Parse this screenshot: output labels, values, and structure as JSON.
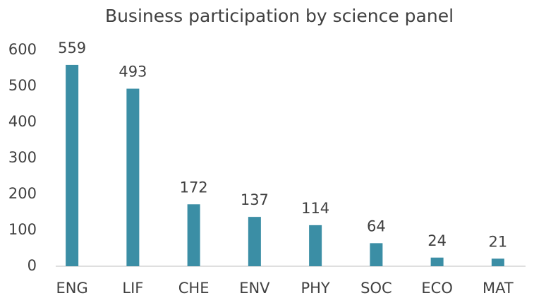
{
  "chart_data": {
    "type": "bar",
    "title": "Business participation by science panel",
    "categories": [
      "ENG",
      "LIF",
      "CHE",
      "ENV",
      "PHY",
      "SOC",
      "ECO",
      "MAT"
    ],
    "values": [
      559,
      493,
      172,
      137,
      114,
      64,
      24,
      21
    ],
    "color": "#3b8ea5",
    "ylim": [
      0,
      600
    ],
    "yticks": [
      0,
      100,
      200,
      300,
      400,
      500,
      600
    ],
    "grid": false
  }
}
